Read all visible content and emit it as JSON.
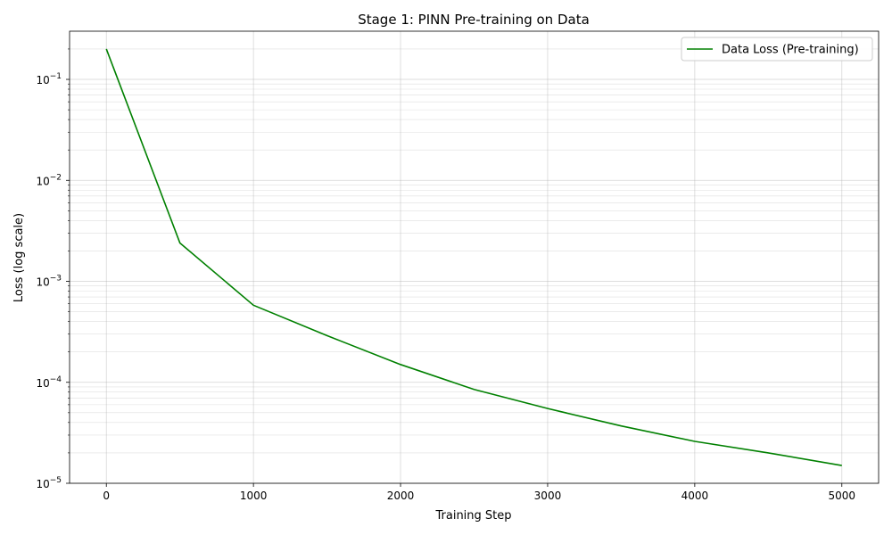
{
  "chart_data": {
    "type": "line",
    "title": "Stage 1: PINN Pre-training on Data",
    "xlabel": "Training Step",
    "ylabel": "Loss (log scale)",
    "xlim": [
      -250,
      5250
    ],
    "ylim": [
      1e-05,
      0.3
    ],
    "yscale": "log",
    "grid": true,
    "x_ticks": [
      0,
      1000,
      2000,
      3000,
      4000,
      5000
    ],
    "x_tick_labels": [
      "0",
      "1000",
      "2000",
      "3000",
      "4000",
      "5000"
    ],
    "y_ticks": [
      1e-05,
      0.0001,
      0.001,
      0.01,
      0.1
    ],
    "y_tick_labels": [
      {
        "base": "10",
        "exp": "−5"
      },
      {
        "base": "10",
        "exp": "−4"
      },
      {
        "base": "10",
        "exp": "−3"
      },
      {
        "base": "10",
        "exp": "−2"
      },
      {
        "base": "10",
        "exp": "−1"
      }
    ],
    "legend_position": "top-right",
    "series": [
      {
        "name": "Data Loss (Pre-training)",
        "color": "#008000",
        "x": [
          0,
          500,
          1000,
          1500,
          2000,
          2500,
          3000,
          3500,
          4000,
          4500,
          5000
        ],
        "y": [
          0.2,
          0.0024,
          0.00058,
          0.00029,
          0.00015,
          8.5e-05,
          5.5e-05,
          3.7e-05,
          2.6e-05,
          2e-05,
          1.5e-05
        ]
      }
    ]
  }
}
